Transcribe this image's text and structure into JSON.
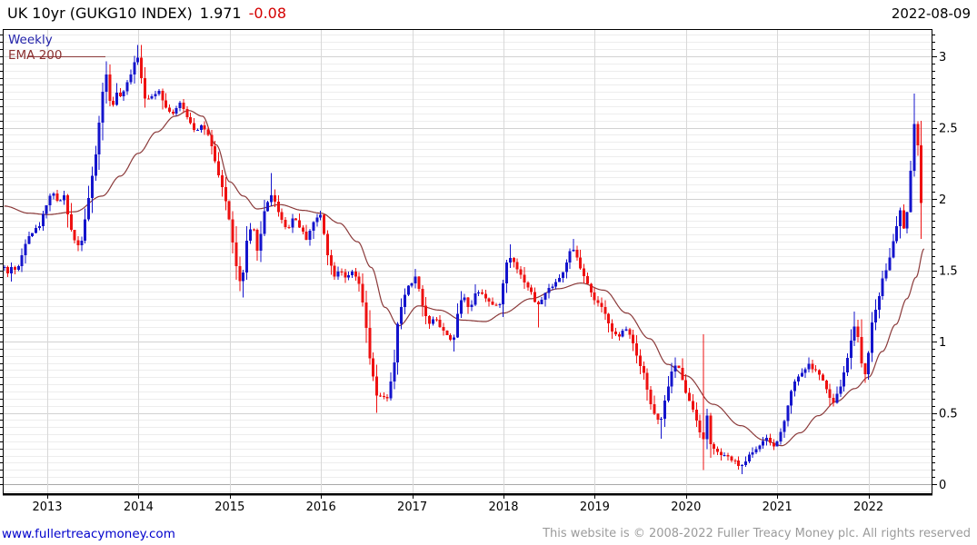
{
  "header": {
    "title": "UK 10yr (GUKG10 INDEX)",
    "last_value": "1.971",
    "change": "-0.08",
    "date": "2022-08-09"
  },
  "legend": {
    "timeframe": "Weekly",
    "overlay": "EMA 200"
  },
  "footer": {
    "site_link": "www.fullertreacymoney.com",
    "copyright": "This website is © 2008-2022 Fuller Treacy Money plc. All rights reserved"
  },
  "colors": {
    "up_candle": "#1414cc",
    "down_candle": "#ee1111",
    "ema_line": "#8b3a3a",
    "grid_minor": "#ededed",
    "grid_major": "#d2d2d2",
    "grid_zero": "#a8a8a8",
    "grid_year": "#d8d8d8",
    "axis": "#000000",
    "tick_label": "#000000",
    "change_text": "#d40000"
  },
  "chart_data": {
    "type": "candlestick",
    "title": "UK 10yr (GUKG10 INDEX)",
    "period": "weekly",
    "overlay": "EMA 200",
    "last_close": 1.971,
    "change": -0.08,
    "as_of": "2022-08-09",
    "x_domain": [
      2012.53,
      2022.7
    ],
    "y_domain": [
      -0.07,
      3.19
    ],
    "x_ticks": [
      2013,
      2014,
      2015,
      2016,
      2017,
      2018,
      2019,
      2020,
      2021,
      2022
    ],
    "x_tick_labels": [
      "2013",
      "2014",
      "2015",
      "2016",
      "2017",
      "2018",
      "2019",
      "2020",
      "2021",
      "2022"
    ],
    "y_ticks": [
      0,
      0.5,
      1,
      1.5,
      2,
      2.5,
      3
    ],
    "y_tick_labels": [
      "0",
      "0.5",
      "1",
      "1.5",
      "2",
      "2.5",
      "3"
    ],
    "y_minor_step": 0.05,
    "grid": true,
    "close_anchors": [
      [
        2012.53,
        1.52
      ],
      [
        2012.58,
        1.46
      ],
      [
        2012.62,
        1.56
      ],
      [
        2012.66,
        1.47
      ],
      [
        2012.72,
        1.6
      ],
      [
        2012.78,
        1.74
      ],
      [
        2012.85,
        1.77
      ],
      [
        2012.92,
        1.82
      ],
      [
        2013.0,
        1.98
      ],
      [
        2013.06,
        2.06
      ],
      [
        2013.12,
        1.96
      ],
      [
        2013.18,
        2.04
      ],
      [
        2013.24,
        1.82
      ],
      [
        2013.3,
        1.72
      ],
      [
        2013.36,
        1.65
      ],
      [
        2013.42,
        1.88
      ],
      [
        2013.48,
        2.1
      ],
      [
        2013.54,
        2.35
      ],
      [
        2013.6,
        2.72
      ],
      [
        2013.64,
        2.9
      ],
      [
        2013.7,
        2.62
      ],
      [
        2013.76,
        2.74
      ],
      [
        2013.82,
        2.71
      ],
      [
        2013.88,
        2.82
      ],
      [
        2013.94,
        2.92
      ],
      [
        2013.98,
        3.04
      ],
      [
        2014.03,
        2.86
      ],
      [
        2014.08,
        2.68
      ],
      [
        2014.15,
        2.72
      ],
      [
        2014.22,
        2.77
      ],
      [
        2014.3,
        2.64
      ],
      [
        2014.38,
        2.6
      ],
      [
        2014.46,
        2.67
      ],
      [
        2014.54,
        2.57
      ],
      [
        2014.62,
        2.48
      ],
      [
        2014.7,
        2.52
      ],
      [
        2014.78,
        2.42
      ],
      [
        2014.86,
        2.2
      ],
      [
        2014.94,
        2.04
      ],
      [
        2015.02,
        1.76
      ],
      [
        2015.08,
        1.48
      ],
      [
        2015.13,
        1.38
      ],
      [
        2015.19,
        1.72
      ],
      [
        2015.25,
        1.82
      ],
      [
        2015.31,
        1.62
      ],
      [
        2015.38,
        1.92
      ],
      [
        2015.45,
        2.04
      ],
      [
        2015.5,
        1.97
      ],
      [
        2015.56,
        1.87
      ],
      [
        2015.63,
        1.78
      ],
      [
        2015.7,
        1.88
      ],
      [
        2015.77,
        1.8
      ],
      [
        2015.84,
        1.72
      ],
      [
        2015.92,
        1.84
      ],
      [
        2016.0,
        1.89
      ],
      [
        2016.07,
        1.62
      ],
      [
        2016.14,
        1.46
      ],
      [
        2016.21,
        1.51
      ],
      [
        2016.28,
        1.44
      ],
      [
        2016.35,
        1.49
      ],
      [
        2016.42,
        1.4
      ],
      [
        2016.48,
        1.18
      ],
      [
        2016.53,
        0.9
      ],
      [
        2016.58,
        0.72
      ],
      [
        2016.63,
        0.56
      ],
      [
        2016.67,
        0.66
      ],
      [
        2016.71,
        0.56
      ],
      [
        2016.76,
        0.7
      ],
      [
        2016.8,
        0.82
      ],
      [
        2016.84,
        1.12
      ],
      [
        2016.89,
        1.26
      ],
      [
        2016.94,
        1.38
      ],
      [
        2017.0,
        1.42
      ],
      [
        2017.05,
        1.46
      ],
      [
        2017.11,
        1.25
      ],
      [
        2017.18,
        1.12
      ],
      [
        2017.25,
        1.18
      ],
      [
        2017.32,
        1.08
      ],
      [
        2017.39,
        1.05
      ],
      [
        2017.45,
        0.98
      ],
      [
        2017.51,
        1.26
      ],
      [
        2017.57,
        1.32
      ],
      [
        2017.63,
        1.22
      ],
      [
        2017.7,
        1.36
      ],
      [
        2017.77,
        1.34
      ],
      [
        2017.84,
        1.28
      ],
      [
        2017.91,
        1.24
      ],
      [
        2017.97,
        1.28
      ],
      [
        2018.03,
        1.55
      ],
      [
        2018.09,
        1.6
      ],
      [
        2018.16,
        1.5
      ],
      [
        2018.23,
        1.42
      ],
      [
        2018.3,
        1.35
      ],
      [
        2018.37,
        1.24
      ],
      [
        2018.44,
        1.32
      ],
      [
        2018.51,
        1.38
      ],
      [
        2018.58,
        1.42
      ],
      [
        2018.65,
        1.48
      ],
      [
        2018.72,
        1.62
      ],
      [
        2018.78,
        1.64
      ],
      [
        2018.85,
        1.5
      ],
      [
        2018.92,
        1.4
      ],
      [
        2018.98,
        1.3
      ],
      [
        2019.05,
        1.26
      ],
      [
        2019.12,
        1.18
      ],
      [
        2019.19,
        1.08
      ],
      [
        2019.26,
        1.02
      ],
      [
        2019.33,
        1.1
      ],
      [
        2019.4,
        1.04
      ],
      [
        2019.47,
        0.88
      ],
      [
        2019.54,
        0.78
      ],
      [
        2019.6,
        0.58
      ],
      [
        2019.66,
        0.48
      ],
      [
        2019.72,
        0.42
      ],
      [
        2019.78,
        0.62
      ],
      [
        2019.84,
        0.78
      ],
      [
        2019.9,
        0.85
      ],
      [
        2019.96,
        0.74
      ],
      [
        2020.02,
        0.6
      ],
      [
        2020.08,
        0.52
      ],
      [
        2020.14,
        0.4
      ],
      [
        2020.19,
        0.3
      ],
      [
        2020.23,
        0.48
      ],
      [
        2020.27,
        0.28
      ],
      [
        2020.33,
        0.22
      ],
      [
        2020.41,
        0.2
      ],
      [
        2020.48,
        0.18
      ],
      [
        2020.55,
        0.15
      ],
      [
        2020.62,
        0.12
      ],
      [
        2020.68,
        0.2
      ],
      [
        2020.75,
        0.24
      ],
      [
        2020.82,
        0.28
      ],
      [
        2020.89,
        0.32
      ],
      [
        2020.96,
        0.26
      ],
      [
        2021.02,
        0.32
      ],
      [
        2021.08,
        0.46
      ],
      [
        2021.14,
        0.62
      ],
      [
        2021.2,
        0.74
      ],
      [
        2021.27,
        0.78
      ],
      [
        2021.34,
        0.84
      ],
      [
        2021.41,
        0.8
      ],
      [
        2021.48,
        0.76
      ],
      [
        2021.55,
        0.64
      ],
      [
        2021.61,
        0.56
      ],
      [
        2021.68,
        0.66
      ],
      [
        2021.74,
        0.8
      ],
      [
        2021.8,
        0.98
      ],
      [
        2021.85,
        1.12
      ],
      [
        2021.89,
        1.02
      ],
      [
        2021.93,
        0.82
      ],
      [
        2021.97,
        0.76
      ],
      [
        2022.01,
        0.98
      ],
      [
        2022.05,
        1.18
      ],
      [
        2022.1,
        1.26
      ],
      [
        2022.15,
        1.44
      ],
      [
        2022.2,
        1.52
      ],
      [
        2022.25,
        1.64
      ],
      [
        2022.3,
        1.78
      ],
      [
        2022.35,
        1.92
      ],
      [
        2022.39,
        1.78
      ],
      [
        2022.42,
        1.88
      ],
      [
        2022.45,
        2.08
      ],
      [
        2022.48,
        2.35
      ],
      [
        2022.51,
        2.58
      ],
      [
        2022.535,
        2.42
      ],
      [
        2022.555,
        2.28
      ],
      [
        2022.575,
        2.05
      ],
      [
        2022.59,
        1.92
      ],
      [
        2022.6,
        2.03
      ],
      [
        2022.61,
        1.97
      ]
    ],
    "extremes": [
      {
        "t": 2012.6,
        "low": 1.42
      },
      {
        "t": 2013.98,
        "high": 3.08
      },
      {
        "t": 2015.13,
        "low": 1.31
      },
      {
        "t": 2015.45,
        "high": 2.18
      },
      {
        "t": 2016.63,
        "low": 0.5
      },
      {
        "t": 2017.05,
        "high": 1.51
      },
      {
        "t": 2017.45,
        "low": 0.93
      },
      {
        "t": 2018.06,
        "high": 1.68
      },
      {
        "t": 2018.38,
        "low": 1.1
      },
      {
        "t": 2018.76,
        "high": 1.72
      },
      {
        "t": 2019.72,
        "low": 0.32
      },
      {
        "t": 2019.9,
        "high": 0.89
      },
      {
        "t": 2020.21,
        "high": 1.05,
        "low": 0.1
      },
      {
        "t": 2020.62,
        "low": 0.07
      },
      {
        "t": 2021.85,
        "high": 1.21
      },
      {
        "t": 2021.96,
        "low": 0.71
      },
      {
        "t": 2022.51,
        "high": 2.74
      },
      {
        "t": 2022.59,
        "low": 1.72
      }
    ],
    "ema_anchors": [
      [
        2012.53,
        1.95
      ],
      [
        2012.8,
        1.9
      ],
      [
        2013.0,
        1.89
      ],
      [
        2013.3,
        1.91
      ],
      [
        2013.6,
        2.02
      ],
      [
        2013.8,
        2.16
      ],
      [
        2014.0,
        2.32
      ],
      [
        2014.2,
        2.47
      ],
      [
        2014.4,
        2.58
      ],
      [
        2014.55,
        2.62
      ],
      [
        2014.7,
        2.58
      ],
      [
        2014.85,
        2.38
      ],
      [
        2015.0,
        2.12
      ],
      [
        2015.15,
        2.02
      ],
      [
        2015.3,
        1.93
      ],
      [
        2015.55,
        1.96
      ],
      [
        2015.8,
        1.92
      ],
      [
        2016.0,
        1.9
      ],
      [
        2016.2,
        1.83
      ],
      [
        2016.4,
        1.7
      ],
      [
        2016.55,
        1.52
      ],
      [
        2016.7,
        1.24
      ],
      [
        2016.85,
        1.11
      ],
      [
        2017.07,
        1.25
      ],
      [
        2017.3,
        1.22
      ],
      [
        2017.55,
        1.15
      ],
      [
        2017.8,
        1.14
      ],
      [
        2018.0,
        1.2
      ],
      [
        2018.3,
        1.3
      ],
      [
        2018.6,
        1.37
      ],
      [
        2018.85,
        1.41
      ],
      [
        2019.1,
        1.36
      ],
      [
        2019.35,
        1.2
      ],
      [
        2019.6,
        1.02
      ],
      [
        2019.8,
        0.84
      ],
      [
        2020.0,
        0.76
      ],
      [
        2020.3,
        0.56
      ],
      [
        2020.6,
        0.41
      ],
      [
        2020.85,
        0.31
      ],
      [
        2021.05,
        0.27
      ],
      [
        2021.25,
        0.36
      ],
      [
        2021.45,
        0.48
      ],
      [
        2021.65,
        0.58
      ],
      [
        2021.85,
        0.67
      ],
      [
        2022.0,
        0.75
      ],
      [
        2022.15,
        0.93
      ],
      [
        2022.3,
        1.12
      ],
      [
        2022.42,
        1.3
      ],
      [
        2022.52,
        1.45
      ],
      [
        2022.61,
        1.65
      ]
    ]
  }
}
